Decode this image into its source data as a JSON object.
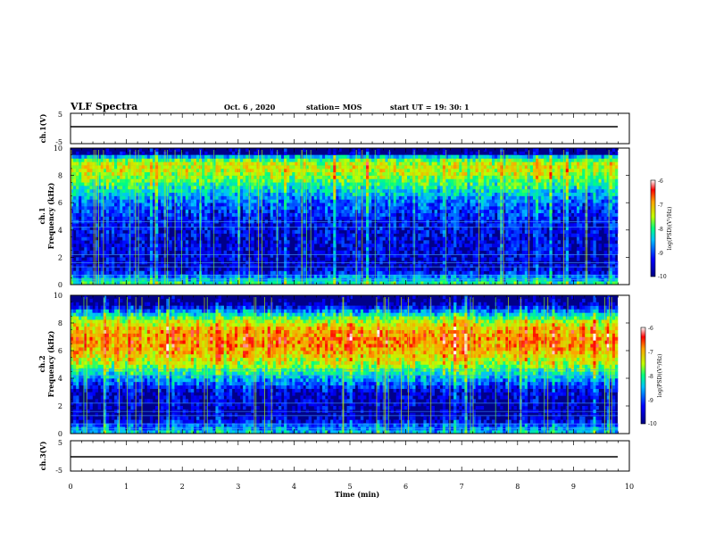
{
  "header": {
    "title": "VLF Spectra",
    "date": "Oct. 6 , 2020",
    "station": "station= MOS",
    "start": "start UT = 19: 30: 1"
  },
  "chart_data": [
    {
      "type": "line",
      "panel": "ch1-waveform",
      "ylabel": "ch.1(V)",
      "ylim": [
        -5,
        5
      ],
      "yticks": [
        "5",
        "-5"
      ],
      "series": [
        {
          "x": [
            0,
            9.8
          ],
          "y": [
            0,
            0
          ]
        }
      ]
    },
    {
      "type": "heatmap",
      "panel": "ch1-spectrogram",
      "ylabel_line1": "ch.1",
      "ylabel_line2": "Frequency (kHz)",
      "ylim": [
        0,
        10
      ],
      "yticks": [
        "0",
        "2",
        "4",
        "6",
        "8",
        "10"
      ],
      "xlim": [
        0,
        9.8
      ],
      "colorbar": {
        "range": [
          -10,
          -6
        ],
        "ticks": [
          "-6",
          "-7",
          "-8",
          "-9",
          "-10"
        ],
        "label": "log(PSD)(V²/Hz)"
      },
      "band_profile": [
        [
          0,
          -8.0
        ],
        [
          0.5,
          -8.6
        ],
        [
          1.0,
          -9.4
        ],
        [
          1.5,
          -9.6
        ],
        [
          2.0,
          -9.5
        ],
        [
          3.0,
          -9.5
        ],
        [
          4.0,
          -9.4
        ],
        [
          5.0,
          -9.2
        ],
        [
          6.0,
          -8.9
        ],
        [
          7.0,
          -8.3
        ],
        [
          8.0,
          -7.6
        ],
        [
          8.5,
          -7.4
        ],
        [
          9.0,
          -7.6
        ],
        [
          9.4,
          -8.6
        ],
        [
          9.6,
          -9.8
        ],
        [
          10.0,
          -10.0
        ]
      ]
    },
    {
      "type": "heatmap",
      "panel": "ch2-spectrogram",
      "ylabel_line1": "ch.2",
      "ylabel_line2": "Frequency (kHz)",
      "ylim": [
        0,
        10
      ],
      "yticks": [
        "0",
        "2",
        "4",
        "6",
        "8",
        "10"
      ],
      "xlim": [
        0,
        9.8
      ],
      "colorbar": {
        "range": [
          -10,
          -6
        ],
        "ticks": [
          "-6",
          "-7",
          "-8",
          "-9",
          "-10"
        ],
        "label": "log(PSD)(V²/Hz)"
      },
      "band_profile": [
        [
          0,
          -8.4
        ],
        [
          0.5,
          -8.8
        ],
        [
          1.0,
          -9.5
        ],
        [
          1.5,
          -9.7
        ],
        [
          2.0,
          -9.6
        ],
        [
          3.0,
          -9.5
        ],
        [
          4.0,
          -8.6
        ],
        [
          5.0,
          -7.6
        ],
        [
          6.0,
          -7.0
        ],
        [
          6.8,
          -6.8
        ],
        [
          7.5,
          -7.0
        ],
        [
          8.2,
          -7.6
        ],
        [
          8.8,
          -8.6
        ],
        [
          9.3,
          -9.6
        ],
        [
          9.6,
          -9.9
        ],
        [
          10.0,
          -10.0
        ]
      ]
    },
    {
      "type": "line",
      "panel": "ch3-waveform",
      "ylabel": "ch.3(V)",
      "ylim": [
        -5,
        5
      ],
      "yticks": [
        "5",
        "-5"
      ],
      "series": [
        {
          "x": [
            0,
            9.8
          ],
          "y": [
            0,
            0
          ]
        }
      ]
    }
  ],
  "xaxis": {
    "label": "Time (min)",
    "range": [
      0,
      10
    ],
    "ticks": [
      "0",
      "1",
      "2",
      "3",
      "4",
      "5",
      "6",
      "7",
      "8",
      "9",
      "10"
    ]
  }
}
